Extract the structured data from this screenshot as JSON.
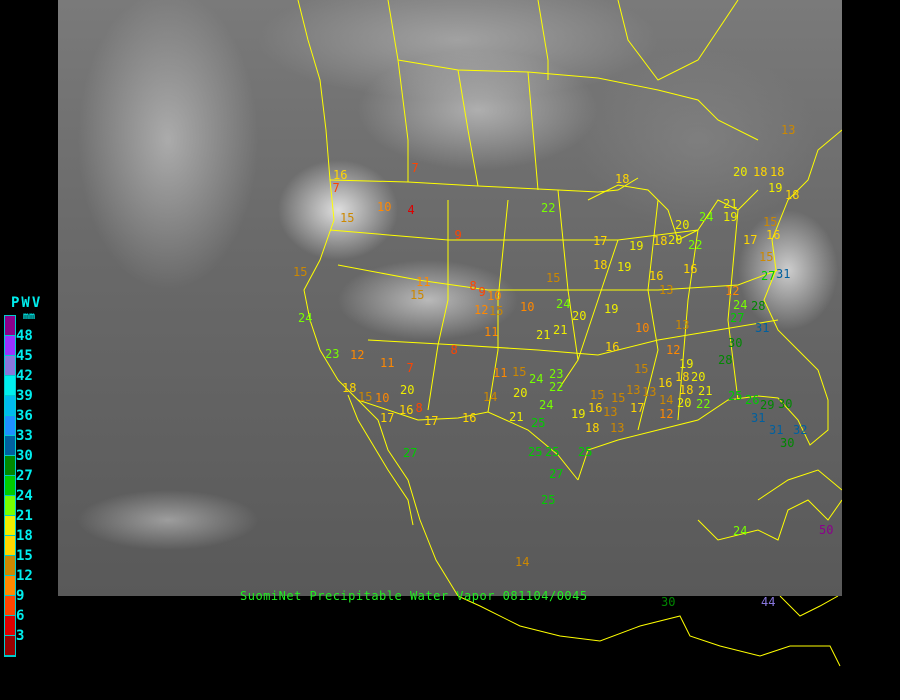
{
  "caption": "SuomiNet Precipitable Water Vapor 081104/0045",
  "legend": {
    "title": "PWV",
    "unit": "mm",
    "labels": [
      "48",
      "45",
      "42",
      "39",
      "36",
      "33",
      "30",
      "27",
      "24",
      "21",
      "18",
      "15",
      "12",
      "9",
      "6",
      "3"
    ],
    "colors": [
      "#8b008b",
      "#9933ff",
      "#8877dd",
      "#00eeee",
      "#00bbee",
      "#1e90ff",
      "#00609f",
      "#008800",
      "#00cc00",
      "#77ff00",
      "#eeee00",
      "#ffd700",
      "#cc8800",
      "#ff8800",
      "#ff4400",
      "#dd0000",
      "#990000"
    ]
  },
  "colors": {
    "boundaries": "#ffff00",
    "caption": "#22ee22",
    "legend_text": "#00eeee"
  },
  "stations": [
    "7",
    "16",
    "7",
    "10",
    "4",
    "15",
    "9",
    "22",
    "15",
    "11",
    "8",
    "9",
    "10",
    "15",
    "12",
    "15",
    "11",
    "15",
    "10",
    "24",
    "24",
    "20",
    "21",
    "21",
    "23",
    "12",
    "11",
    "7",
    "8",
    "11",
    "15",
    "24",
    "23",
    "22",
    "20",
    "18",
    "15",
    "10",
    "16",
    "8",
    "17",
    "17",
    "16",
    "14",
    "20",
    "21",
    "24",
    "25",
    "18",
    "17",
    "18",
    "19",
    "19",
    "18",
    "20",
    "22",
    "20",
    "16",
    "16",
    "13",
    "19",
    "12",
    "24",
    "28",
    "27",
    "31",
    "30",
    "28",
    "13",
    "10",
    "16",
    "15",
    "12",
    "19",
    "18",
    "20",
    "21",
    "16",
    "18",
    "14",
    "20",
    "22",
    "25",
    "26",
    "29",
    "30",
    "31",
    "31",
    "30",
    "32",
    "19",
    "16",
    "15",
    "13",
    "17",
    "15",
    "13",
    "13",
    "18",
    "13",
    "12",
    "20",
    "18",
    "18",
    "19",
    "18",
    "21",
    "19",
    "24",
    "15",
    "16",
    "17",
    "15",
    "27",
    "31",
    "13",
    "14",
    "24",
    "30",
    "44",
    "50",
    "27",
    "25",
    "25",
    "27",
    "25",
    "25"
  ]
}
